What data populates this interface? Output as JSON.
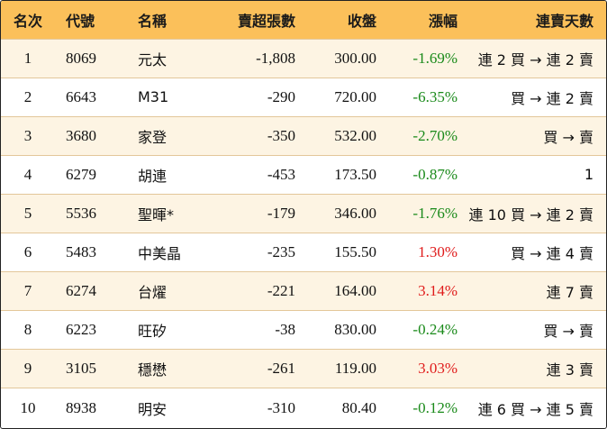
{
  "table": {
    "headers": {
      "rank": "名次",
      "code": "代號",
      "name": "名稱",
      "net_sell": "賣超張數",
      "close": "收盤",
      "change": "漲幅",
      "streak": "連賣天數"
    },
    "rows": [
      {
        "rank": "1",
        "code": "8069",
        "name": "元太",
        "net_sell": "-1,808",
        "close": "300.00",
        "change": "-1.69%",
        "streak": "連 2 買 → 連 2 賣"
      },
      {
        "rank": "2",
        "code": "6643",
        "name": "M31",
        "net_sell": "-290",
        "close": "720.00",
        "change": "-6.35%",
        "streak": "買 → 連 2 賣"
      },
      {
        "rank": "3",
        "code": "3680",
        "name": "家登",
        "net_sell": "-350",
        "close": "532.00",
        "change": "-2.70%",
        "streak": "買 → 賣"
      },
      {
        "rank": "4",
        "code": "6279",
        "name": "胡連",
        "net_sell": "-453",
        "close": "173.50",
        "change": "-0.87%",
        "streak": "1"
      },
      {
        "rank": "5",
        "code": "5536",
        "name": "聖暉*",
        "net_sell": "-179",
        "close": "346.00",
        "change": "-1.76%",
        "streak": "連 10 買 → 連 2 賣"
      },
      {
        "rank": "6",
        "code": "5483",
        "name": "中美晶",
        "net_sell": "-235",
        "close": "155.50",
        "change": "1.30%",
        "streak": "買 → 連 4 賣"
      },
      {
        "rank": "7",
        "code": "6274",
        "name": "台燿",
        "net_sell": "-221",
        "close": "164.00",
        "change": "3.14%",
        "streak": "連 7 賣"
      },
      {
        "rank": "8",
        "code": "6223",
        "name": "旺矽",
        "net_sell": "-38",
        "close": "830.00",
        "change": "-0.24%",
        "streak": "買 → 賣"
      },
      {
        "rank": "9",
        "code": "3105",
        "name": "穩懋",
        "net_sell": "-261",
        "close": "119.00",
        "change": "3.03%",
        "streak": "連 3 賣"
      },
      {
        "rank": "10",
        "code": "8938",
        "name": "明安",
        "net_sell": "-310",
        "close": "80.40",
        "change": "-0.12%",
        "streak": "連 6 買 → 連 5 賣"
      }
    ]
  },
  "colors": {
    "header_bg": "#fbc05a",
    "stripe_bg": "#fdf4e3",
    "negative": "#1a8a1a",
    "positive": "#e01b1b"
  }
}
